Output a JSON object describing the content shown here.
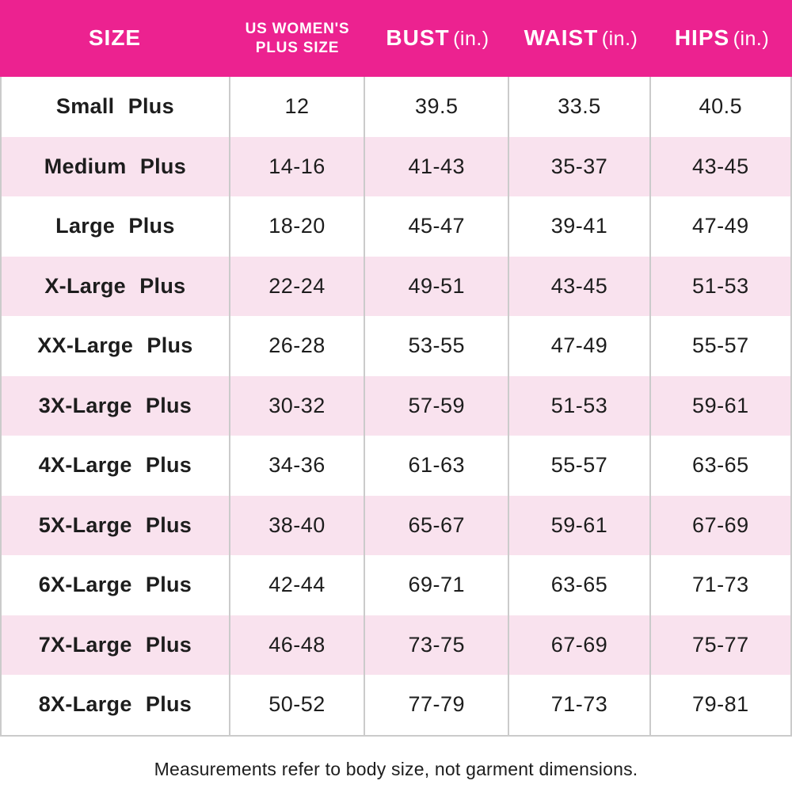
{
  "chart_data": {
    "type": "table",
    "title": "",
    "columns": [
      "SIZE",
      "US WOMEN'S PLUS SIZE",
      "BUST (in.)",
      "WAIST (in.)",
      "HIPS (in.)"
    ],
    "rows": [
      [
        "Small Plus",
        "12",
        "39.5",
        "33.5",
        "40.5"
      ],
      [
        "Medium Plus",
        "14-16",
        "41-43",
        "35-37",
        "43-45"
      ],
      [
        "Large Plus",
        "18-20",
        "45-47",
        "39-41",
        "47-49"
      ],
      [
        "X-Large Plus",
        "22-24",
        "49-51",
        "43-45",
        "51-53"
      ],
      [
        "XX-Large Plus",
        "26-28",
        "53-55",
        "47-49",
        "55-57"
      ],
      [
        "3X-Large Plus",
        "30-32",
        "57-59",
        "51-53",
        "59-61"
      ],
      [
        "4X-Large Plus",
        "34-36",
        "61-63",
        "55-57",
        "63-65"
      ],
      [
        "5X-Large Plus",
        "38-40",
        "65-67",
        "59-61",
        "67-69"
      ],
      [
        "6X-Large Plus",
        "42-44",
        "69-71",
        "63-65",
        "71-73"
      ],
      [
        "7X-Large Plus",
        "46-48",
        "73-75",
        "67-69",
        "75-77"
      ],
      [
        "8X-Large Plus",
        "50-52",
        "77-79",
        "71-73",
        "79-81"
      ]
    ]
  },
  "header": {
    "size_label": "SIZE",
    "plus_line1": "US WOMEN'S",
    "plus_line2": "PLUS SIZE",
    "bust_label": "BUST",
    "bust_unit": "(in.)",
    "waist_label": "WAIST",
    "waist_unit": "(in.)",
    "hips_label": "HIPS",
    "hips_unit": "(in.)"
  },
  "footnote": "Measurements refer to body size, not garment dimensions.",
  "colors": {
    "header_bg": "#EC2290",
    "header_text": "#FFFFFF",
    "stripe_bg": "#F9E2EE",
    "border": "#CBCBCB",
    "body_text": "#1D1D1D"
  }
}
